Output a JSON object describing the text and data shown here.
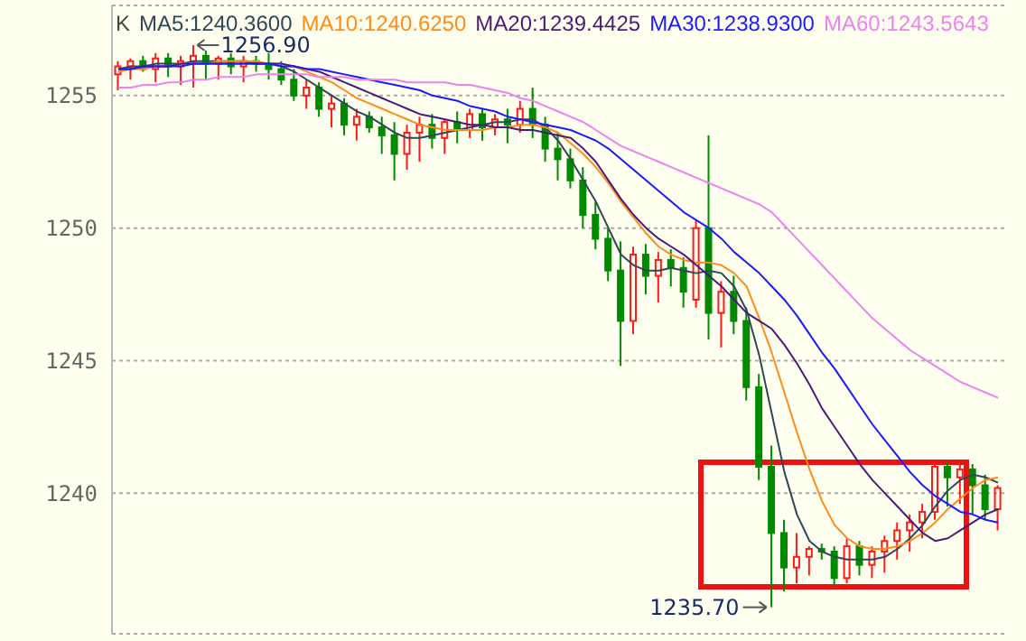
{
  "chart_data": {
    "type": "candlestick",
    "legend_title": "K",
    "legend": "top left",
    "grid": "y",
    "tick_labels": "y",
    "marker": "none",
    "line_style": "solid",
    "categories": [
      null,
      null,
      null,
      null,
      null,
      null,
      null,
      null,
      null,
      null,
      null,
      null,
      null,
      null,
      null,
      null,
      null,
      null,
      null,
      null,
      null,
      null,
      null,
      null,
      null,
      null,
      null,
      null,
      null,
      null,
      null,
      null,
      null,
      null,
      null,
      null,
      null,
      null,
      null,
      null,
      null,
      null,
      null,
      null,
      null,
      null,
      null,
      null,
      null,
      null,
      null,
      null,
      null,
      null,
      null,
      null,
      null,
      null,
      null,
      null,
      null,
      null,
      null,
      null,
      null,
      null,
      null,
      null,
      null,
      null,
      null
    ],
    "ylim": [
      1234.7,
      1258.4
    ],
    "yticks": [
      1240,
      1245,
      1250,
      1255
    ],
    "ohlc": [
      [
        1255.8,
        1256.3,
        1255.2,
        1256.1
      ],
      [
        1256.1,
        1256.4,
        1255.6,
        1256.3
      ],
      [
        1256.3,
        1256.5,
        1255.9,
        1256.0
      ],
      [
        1256.0,
        1256.6,
        1255.5,
        1256.4
      ],
      [
        1256.4,
        1256.6,
        1255.7,
        1256.1
      ],
      [
        1256.1,
        1256.5,
        1255.4,
        1256.3
      ],
      [
        1256.3,
        1256.9,
        1255.3,
        1256.5
      ],
      [
        1256.5,
        1256.7,
        1255.6,
        1256.2
      ],
      [
        1256.2,
        1256.5,
        1255.6,
        1256.4
      ],
      [
        1256.4,
        1256.6,
        1255.8,
        1256.1
      ],
      [
        1256.1,
        1256.5,
        1255.5,
        1256.3
      ],
      [
        1256.3,
        1256.5,
        1255.9,
        1256.2
      ],
      [
        1256.2,
        1256.6,
        1255.6,
        1256.0
      ],
      [
        1256.0,
        1256.3,
        1255.4,
        1255.6
      ],
      [
        1255.6,
        1256.0,
        1254.8,
        1255.0
      ],
      [
        1255.0,
        1255.6,
        1254.5,
        1255.3
      ],
      [
        1255.3,
        1255.5,
        1254.2,
        1254.5
      ],
      [
        1254.5,
        1255.0,
        1253.8,
        1254.7
      ],
      [
        1254.7,
        1254.9,
        1253.5,
        1253.9
      ],
      [
        1253.9,
        1254.5,
        1253.3,
        1254.2
      ],
      [
        1254.2,
        1254.4,
        1253.6,
        1253.8
      ],
      [
        1253.8,
        1254.2,
        1252.8,
        1253.5
      ],
      [
        1253.5,
        1254.0,
        1251.8,
        1252.8
      ],
      [
        1252.8,
        1253.9,
        1252.2,
        1253.6
      ],
      [
        1253.6,
        1254.2,
        1252.5,
        1253.9
      ],
      [
        1253.9,
        1254.3,
        1253.0,
        1253.4
      ],
      [
        1253.4,
        1254.1,
        1252.8,
        1254.0
      ],
      [
        1254.0,
        1254.4,
        1253.2,
        1253.7
      ],
      [
        1253.7,
        1254.5,
        1253.4,
        1254.3
      ],
      [
        1254.3,
        1254.5,
        1253.3,
        1253.8
      ],
      [
        1253.8,
        1254.3,
        1253.5,
        1254.1
      ],
      [
        1254.1,
        1254.5,
        1253.2,
        1253.9
      ],
      [
        1253.9,
        1254.8,
        1253.6,
        1254.5
      ],
      [
        1254.5,
        1255.3,
        1253.4,
        1253.9
      ],
      [
        1253.9,
        1254.2,
        1252.5,
        1253.0
      ],
      [
        1253.0,
        1253.6,
        1251.8,
        1252.6
      ],
      [
        1252.6,
        1253.0,
        1251.5,
        1251.8
      ],
      [
        1251.8,
        1252.3,
        1250.0,
        1250.5
      ],
      [
        1250.5,
        1251.0,
        1249.2,
        1249.6
      ],
      [
        1249.6,
        1250.0,
        1248.0,
        1248.4
      ],
      [
        1248.4,
        1249.5,
        1244.8,
        1246.5
      ],
      [
        1246.5,
        1249.3,
        1246.0,
        1249.0
      ],
      [
        1249.0,
        1249.4,
        1247.5,
        1248.2
      ],
      [
        1248.2,
        1249.1,
        1247.2,
        1248.8
      ],
      [
        1248.8,
        1249.2,
        1247.8,
        1248.5
      ],
      [
        1248.5,
        1248.9,
        1247.0,
        1247.6
      ],
      [
        1247.3,
        1250.3,
        1247.0,
        1250.0
      ],
      [
        1250.0,
        1253.5,
        1245.8,
        1246.8
      ],
      [
        1246.8,
        1248.0,
        1245.5,
        1247.6
      ],
      [
        1247.6,
        1248.2,
        1246.0,
        1246.5
      ],
      [
        1246.5,
        1247.0,
        1243.5,
        1244.0
      ],
      [
        1244.0,
        1244.5,
        1240.5,
        1241.0
      ],
      [
        1241.0,
        1241.8,
        1235.7,
        1238.5
      ],
      [
        1238.5,
        1239.0,
        1236.3,
        1237.2
      ],
      [
        1237.2,
        1238.5,
        1236.6,
        1237.6
      ],
      [
        1237.6,
        1238.0,
        1236.9,
        1237.9
      ],
      [
        1237.9,
        1238.1,
        1237.5,
        1237.8
      ],
      [
        1237.8,
        1238.0,
        1236.5,
        1236.8
      ],
      [
        1236.8,
        1238.3,
        1236.6,
        1238.0
      ],
      [
        1238.0,
        1238.2,
        1236.9,
        1237.3
      ],
      [
        1237.3,
        1238.0,
        1236.8,
        1237.8
      ],
      [
        1237.8,
        1238.4,
        1237.0,
        1238.2
      ],
      [
        1238.2,
        1238.9,
        1237.5,
        1238.6
      ],
      [
        1238.6,
        1239.2,
        1237.8,
        1238.9
      ],
      [
        1238.9,
        1239.6,
        1238.3,
        1239.3
      ],
      [
        1239.3,
        1241.2,
        1239.0,
        1241.0
      ],
      [
        1241.0,
        1241.2,
        1239.5,
        1240.6
      ],
      [
        1240.6,
        1241.1,
        1239.6,
        1240.9
      ],
      [
        1240.9,
        1241.1,
        1239.2,
        1240.3
      ],
      [
        1240.3,
        1240.7,
        1239.0,
        1239.4
      ],
      [
        1239.4,
        1240.3,
        1238.6,
        1240.2
      ]
    ],
    "series": [
      {
        "type": "line",
        "name": "MA5:1240.3600",
        "color": "#2f4858",
        "values": [
          1256.0,
          1256.1,
          1256.1,
          1256.2,
          1256.2,
          1256.2,
          1256.3,
          1256.3,
          1256.3,
          1256.3,
          1256.3,
          1256.2,
          1256.2,
          1256.1,
          1255.9,
          1255.6,
          1255.3,
          1255.0,
          1254.7,
          1254.4,
          1254.2,
          1253.9,
          1253.6,
          1253.4,
          1253.4,
          1253.5,
          1253.6,
          1253.7,
          1253.8,
          1253.9,
          1254.0,
          1254.0,
          1254.1,
          1254.1,
          1253.8,
          1253.3,
          1252.6,
          1251.8,
          1251.0,
          1250.0,
          1249.0,
          1248.6,
          1248.4,
          1248.4,
          1248.5,
          1248.4,
          1248.3,
          1248.4,
          1248.3,
          1247.8,
          1246.9,
          1245.2,
          1243.0,
          1240.8,
          1239.2,
          1238.2,
          1237.8,
          1237.6,
          1237.5,
          1237.5,
          1237.5,
          1237.6,
          1237.9,
          1238.3,
          1238.8,
          1239.5,
          1240.1,
          1240.5,
          1240.7,
          1240.6,
          1240.4
        ]
      },
      {
        "type": "line",
        "name": "MA10:1240.6250",
        "color": "#ff8c1a",
        "values": [
          1255.9,
          1256.0,
          1256.0,
          1256.1,
          1256.1,
          1256.2,
          1256.2,
          1256.2,
          1256.3,
          1256.3,
          1256.3,
          1256.3,
          1256.2,
          1256.2,
          1256.1,
          1255.9,
          1255.7,
          1255.5,
          1255.2,
          1254.9,
          1254.7,
          1254.5,
          1254.3,
          1254.1,
          1253.9,
          1253.8,
          1253.7,
          1253.7,
          1253.7,
          1253.7,
          1253.8,
          1253.8,
          1253.9,
          1253.9,
          1253.8,
          1253.6,
          1253.2,
          1252.8,
          1252.3,
          1251.7,
          1251.0,
          1250.4,
          1249.8,
          1249.3,
          1249.0,
          1248.8,
          1248.7,
          1248.7,
          1248.6,
          1248.3,
          1247.8,
          1246.6,
          1245.3,
          1243.8,
          1242.3,
          1240.9,
          1239.7,
          1238.8,
          1238.3,
          1238.0,
          1237.9,
          1237.9,
          1238.0,
          1238.2,
          1238.5,
          1238.9,
          1239.4,
          1239.8,
          1240.2,
          1240.5,
          1240.6
        ]
      },
      {
        "type": "line",
        "name": "MA20:1239.4425",
        "color": "#4b1a7a",
        "values": [
          1256.0,
          1256.0,
          1256.1,
          1256.1,
          1256.1,
          1256.2,
          1256.2,
          1256.2,
          1256.2,
          1256.2,
          1256.2,
          1256.2,
          1256.2,
          1256.2,
          1256.1,
          1256.0,
          1255.9,
          1255.7,
          1255.5,
          1255.3,
          1255.1,
          1254.9,
          1254.7,
          1254.5,
          1254.3,
          1254.2,
          1254.1,
          1254.0,
          1253.9,
          1253.9,
          1253.8,
          1253.8,
          1253.7,
          1253.7,
          1253.6,
          1253.5,
          1253.4,
          1253.0,
          1252.5,
          1251.8,
          1251.1,
          1250.5,
          1250.0,
          1249.6,
          1249.3,
          1249.0,
          1248.6,
          1248.2,
          1247.8,
          1247.3,
          1246.8,
          1246.5,
          1246.2,
          1245.6,
          1244.9,
          1244.1,
          1243.2,
          1242.5,
          1241.8,
          1241.1,
          1240.5,
          1240.0,
          1239.5,
          1239.0,
          1238.5,
          1238.2,
          1238.3,
          1238.6,
          1238.9,
          1239.2,
          1239.4
        ]
      },
      {
        "type": "line",
        "name": "MA30:1238.9300",
        "color": "#1a1aff",
        "values": [
          1256.0,
          1256.0,
          1256.1,
          1256.1,
          1256.1,
          1256.1,
          1256.2,
          1256.2,
          1256.2,
          1256.2,
          1256.2,
          1256.2,
          1256.2,
          1256.1,
          1256.1,
          1256.0,
          1256.0,
          1255.9,
          1255.8,
          1255.7,
          1255.6,
          1255.5,
          1255.4,
          1255.3,
          1255.2,
          1255.0,
          1254.9,
          1254.8,
          1254.6,
          1254.5,
          1254.4,
          1254.2,
          1254.1,
          1254.0,
          1253.9,
          1253.8,
          1253.7,
          1253.5,
          1253.3,
          1253.0,
          1252.6,
          1252.2,
          1251.8,
          1251.4,
          1251.0,
          1250.6,
          1250.3,
          1250.0,
          1249.6,
          1249.1,
          1248.7,
          1248.3,
          1247.8,
          1247.3,
          1246.7,
          1246.0,
          1245.3,
          1244.7,
          1244.0,
          1243.3,
          1242.6,
          1242.0,
          1241.4,
          1240.8,
          1240.3,
          1239.9,
          1239.6,
          1239.3,
          1239.2,
          1239.0,
          1238.9
        ]
      },
      {
        "type": "line",
        "name": "MA60:1243.5643",
        "color": "#ee82ee",
        "values": [
          1255.3,
          1255.3,
          1255.4,
          1255.4,
          1255.5,
          1255.5,
          1255.6,
          1255.6,
          1255.7,
          1255.7,
          1255.7,
          1255.8,
          1255.8,
          1255.8,
          1255.8,
          1255.8,
          1255.7,
          1255.7,
          1255.7,
          1255.6,
          1255.6,
          1255.6,
          1255.6,
          1255.5,
          1255.5,
          1255.5,
          1255.5,
          1255.4,
          1255.4,
          1255.3,
          1255.2,
          1255.1,
          1254.9,
          1254.8,
          1254.6,
          1254.4,
          1254.2,
          1254.0,
          1253.7,
          1253.4,
          1253.1,
          1252.9,
          1252.7,
          1252.5,
          1252.3,
          1252.1,
          1251.9,
          1251.7,
          1251.5,
          1251.3,
          1251.1,
          1250.9,
          1250.6,
          1250.1,
          1249.6,
          1249.1,
          1248.6,
          1248.1,
          1247.6,
          1247.1,
          1246.6,
          1246.2,
          1245.8,
          1245.4,
          1245.1,
          1244.8,
          1244.5,
          1244.2,
          1244.0,
          1243.8,
          1243.6
        ]
      }
    ],
    "annotations": [
      "1256.90",
      "1235.70"
    ]
  }
}
